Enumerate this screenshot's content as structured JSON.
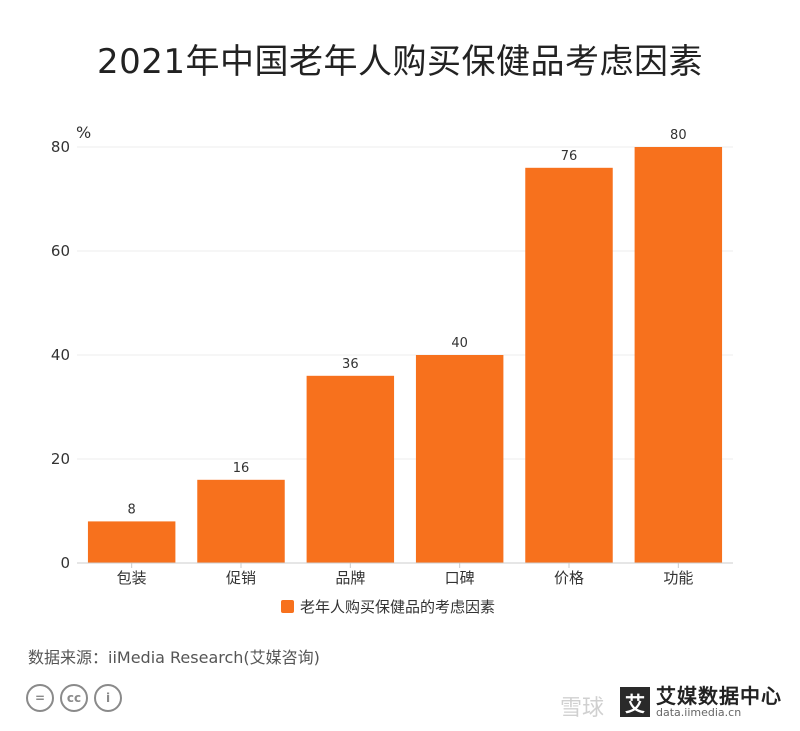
{
  "title": "2021年中国老年人购买保健品考虑因素",
  "source": "数据来源：iiMedia Research(艾媒咨询)",
  "license_badges": [
    "=",
    "cc",
    "i"
  ],
  "logo": {
    "mark": "艾",
    "name": "艾媒数据中心",
    "url": "data.iimedia.cn"
  },
  "watermark": "雪球",
  "colors": {
    "bar": "#f7711d",
    "axis": "#cccccc",
    "grid": "#eeeeee"
  },
  "chart_data": {
    "type": "bar",
    "unit_label": "%",
    "categories": [
      "包装",
      "促销",
      "品牌",
      "口碑",
      "价格",
      "功能"
    ],
    "series": [
      {
        "name": "老年人购买保健品的考虑因素",
        "values": [
          8,
          16,
          36,
          40,
          76,
          80
        ]
      }
    ],
    "ylim": [
      0,
      80
    ],
    "yticks": [
      0,
      20,
      40,
      60,
      80
    ],
    "data_labels": true,
    "grid": true,
    "legend": "bottom-center"
  }
}
